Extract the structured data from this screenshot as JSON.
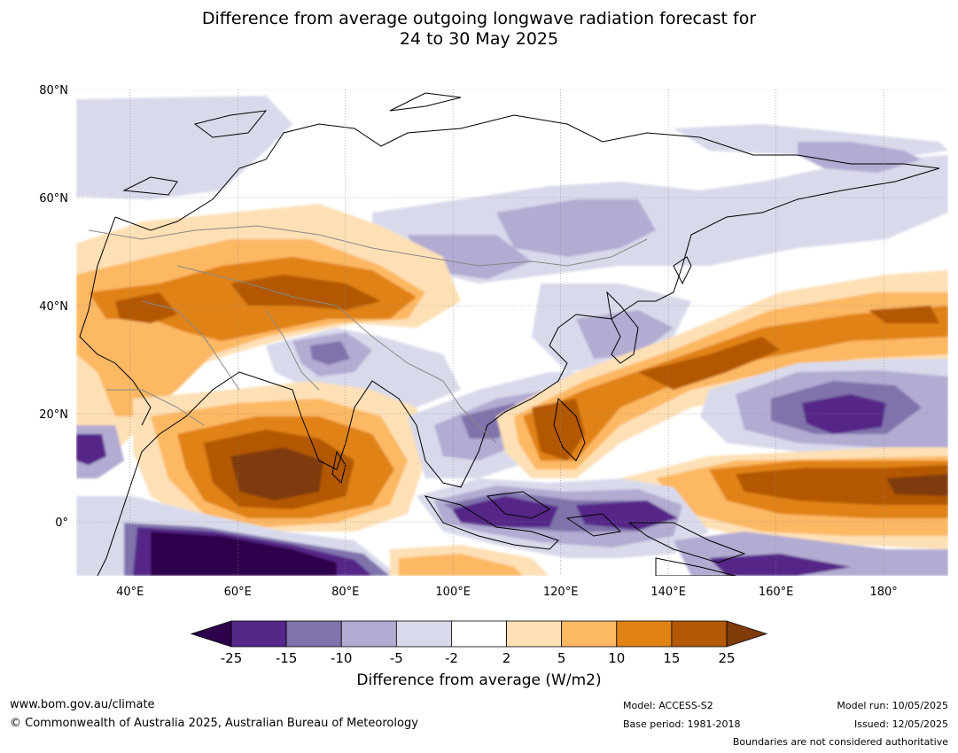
{
  "title_line1": "Difference from average outgoing longwave radiation forecast for",
  "title_line2": "24 to 30 May 2025",
  "lat_labels": [
    {
      "lat": 80,
      "text": "80°N"
    },
    {
      "lat": 60,
      "text": "60°N"
    },
    {
      "lat": 40,
      "text": "40°N"
    },
    {
      "lat": 20,
      "text": "20°N"
    },
    {
      "lat": 0,
      "text": "0°"
    }
  ],
  "lon_labels": [
    {
      "lon": 40,
      "text": "40°E"
    },
    {
      "lon": 60,
      "text": "60°E"
    },
    {
      "lon": 80,
      "text": "80°E"
    },
    {
      "lon": 100,
      "text": "100°E"
    },
    {
      "lon": 120,
      "text": "120°E"
    },
    {
      "lon": 140,
      "text": "140°E"
    },
    {
      "lon": 160,
      "text": "160°E"
    },
    {
      "lon": 180,
      "text": "180°"
    }
  ],
  "map_extent": {
    "lon_min": 30,
    "lon_max": 192,
    "lat_min": -10,
    "lat_max": 80
  },
  "colorbar": {
    "tick_labels": [
      "-25",
      "-15",
      "-10",
      "-5",
      "-2",
      "2",
      "5",
      "10",
      "15",
      "25"
    ],
    "low_extend_color": "#2d004b",
    "high_extend_color": "#7f3b08",
    "bins": [
      {
        "from": "-25",
        "to": "-15",
        "color": "#542788"
      },
      {
        "from": "-15",
        "to": "-10",
        "color": "#8073ac"
      },
      {
        "from": "-10",
        "to": "-5",
        "color": "#b2abd2"
      },
      {
        "from": "-5",
        "to": "-2",
        "color": "#d8daeb"
      },
      {
        "from": "-2",
        "to": "2",
        "color": "#ffffff"
      },
      {
        "from": "2",
        "to": "5",
        "color": "#fee0b6"
      },
      {
        "from": "5",
        "to": "10",
        "color": "#fdb863"
      },
      {
        "from": "10",
        "to": "15",
        "color": "#e08214"
      },
      {
        "from": "15",
        "to": "25",
        "color": "#b35806"
      }
    ],
    "label": "Difference from average (W/m2)"
  },
  "footer": {
    "website": "www.bom.gov.au/climate",
    "copyright": "© Commonwealth of Australia 2025, Australian Bureau of Meteorology",
    "model": "Model: ACCESS-S2",
    "base_period": "Base period: 1981-2018",
    "model_run": "Model run: 10/05/2025",
    "issued": "Issued: 12/05/2025",
    "disclaimer": "Boundaries are not considered authoritative"
  }
}
